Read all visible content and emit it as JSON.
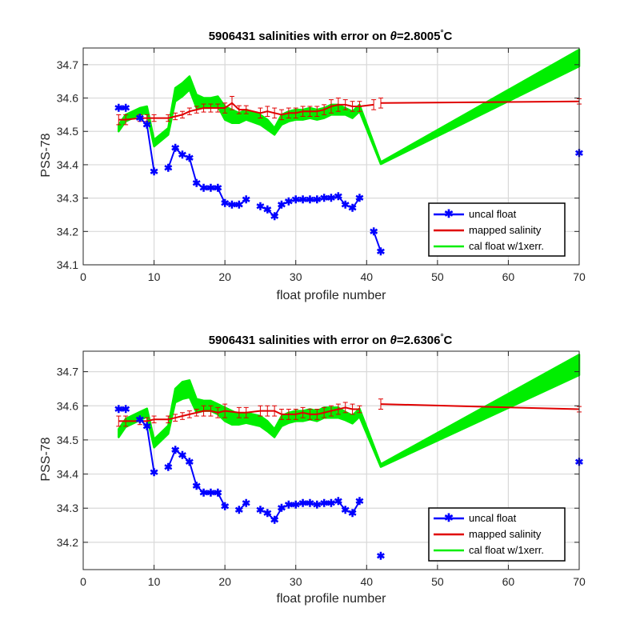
{
  "chart_data": [
    {
      "type": "line",
      "title": "5906431 salinities with error on θ=2.8005°C",
      "title_prefix": "5906431 salinities with error on ",
      "title_theta": "θ",
      "title_value": "=2.8005",
      "title_deg": "°",
      "title_unit": "C",
      "xlabel": "float profile number",
      "ylabel": "PSS-78",
      "xlim": [
        0,
        70
      ],
      "ylim": [
        34.1,
        34.75
      ],
      "xticks": [
        0,
        10,
        20,
        30,
        40,
        50,
        60,
        70
      ],
      "yticks": [
        34.1,
        34.2,
        34.3,
        34.4,
        34.5,
        34.6,
        34.7
      ],
      "grid": true,
      "legend_position": "bottom-right",
      "legend": [
        "uncal float",
        "mapped salinity",
        "cal float w/1xerr."
      ],
      "colors": {
        "uncal": "#0000ff",
        "mapped": "#e00000",
        "cal": "#00ee00"
      },
      "series": [
        {
          "name": "uncal float",
          "segments": [
            [
              [
                5,
                34.57
              ],
              [
                6,
                34.57
              ]
            ],
            [
              [
                8,
                34.54
              ],
              [
                9,
                34.52
              ],
              [
                10,
                34.38
              ]
            ],
            [
              [
                12,
                34.39
              ],
              [
                13,
                34.45
              ],
              [
                14,
                34.43
              ],
              [
                15,
                34.42
              ],
              [
                16,
                34.345
              ],
              [
                17,
                34.33
              ],
              [
                18,
                34.33
              ],
              [
                19,
                34.33
              ],
              [
                20,
                34.285
              ],
              [
                21,
                34.28
              ],
              [
                22,
                34.28
              ],
              [
                23,
                34.295
              ]
            ],
            [
              [
                25,
                34.275
              ],
              [
                26,
                34.265
              ],
              [
                27,
                34.245
              ],
              [
                28,
                34.28
              ],
              [
                29,
                34.29
              ],
              [
                30,
                34.295
              ],
              [
                31,
                34.295
              ],
              [
                32,
                34.295
              ],
              [
                33,
                34.295
              ],
              [
                34,
                34.3
              ],
              [
                35,
                34.3
              ],
              [
                36,
                34.305
              ],
              [
                37,
                34.28
              ],
              [
                38,
                34.27
              ],
              [
                39,
                34.3
              ]
            ],
            [
              [
                41,
                34.2
              ],
              [
                42,
                34.14
              ]
            ],
            [
              [
                70,
                34.435
              ]
            ]
          ]
        },
        {
          "name": "mapped salinity",
          "x": [
            5,
            6,
            8,
            9,
            10,
            12,
            13,
            14,
            15,
            16,
            17,
            18,
            19,
            20,
            21,
            22,
            23,
            25,
            26,
            27,
            28,
            29,
            30,
            31,
            32,
            33,
            34,
            35,
            36,
            37,
            38,
            39,
            41,
            42,
            70
          ],
          "y": [
            34.535,
            34.535,
            34.54,
            34.54,
            34.54,
            34.54,
            34.545,
            34.55,
            34.56,
            34.565,
            34.57,
            34.57,
            34.57,
            34.57,
            34.585,
            34.565,
            34.565,
            34.555,
            34.56,
            34.555,
            34.55,
            34.555,
            34.555,
            34.56,
            34.56,
            34.56,
            34.565,
            34.575,
            34.58,
            34.58,
            34.575,
            34.575,
            34.58,
            34.585,
            34.59
          ],
          "err": [
            0.015,
            0.015,
            0.01,
            0.01,
            0.01,
            0.01,
            0.01,
            0.01,
            0.01,
            0.01,
            0.012,
            0.012,
            0.012,
            0.015,
            0.02,
            0.012,
            0.012,
            0.015,
            0.015,
            0.015,
            0.015,
            0.015,
            0.015,
            0.015,
            0.015,
            0.015,
            0.015,
            0.02,
            0.02,
            0.015,
            0.015,
            0.015,
            0.015,
            0.015,
            0.008
          ],
          "breaks_after_index": [
            32
          ]
        },
        {
          "name": "cal float w/1xerr.",
          "x": [
            5,
            6,
            8,
            9,
            10,
            12,
            13,
            14,
            15,
            16,
            17,
            18,
            19,
            20,
            21,
            22,
            23,
            25,
            26,
            27,
            28,
            29,
            30,
            31,
            32,
            33,
            34,
            35,
            36,
            37,
            38,
            39,
            42,
            70
          ],
          "y": [
            34.51,
            34.54,
            34.56,
            34.565,
            34.465,
            34.5,
            34.61,
            34.625,
            34.645,
            34.59,
            34.585,
            34.585,
            34.59,
            34.555,
            34.545,
            34.54,
            34.55,
            34.535,
            34.52,
            34.5,
            34.535,
            34.545,
            34.55,
            34.55,
            34.555,
            34.55,
            34.555,
            34.565,
            34.565,
            34.56,
            34.55,
            34.57,
            34.405,
            34.72
          ],
          "err": [
            0.01,
            0.01,
            0.01,
            0.01,
            0.01,
            0.01,
            0.02,
            0.02,
            0.02,
            0.02,
            0.015,
            0.015,
            0.015,
            0.02,
            0.02,
            0.015,
            0.015,
            0.015,
            0.015,
            0.01,
            0.015,
            0.015,
            0.015,
            0.015,
            0.015,
            0.015,
            0.015,
            0.015,
            0.015,
            0.01,
            0.01,
            0.01,
            0.003,
            0.025
          ]
        }
      ]
    },
    {
      "type": "line",
      "title": "5906431 salinities with error on θ=2.6306°C",
      "title_prefix": "5906431 salinities with error on ",
      "title_theta": "θ",
      "title_value": "=2.6306",
      "title_deg": "°",
      "title_unit": "C",
      "xlabel": "float profile number",
      "ylabel": "PSS-78",
      "xlim": [
        0,
        70
      ],
      "ylim": [
        34.12,
        34.76
      ],
      "xticks": [
        0,
        10,
        20,
        30,
        40,
        50,
        60,
        70
      ],
      "yticks": [
        34.2,
        34.3,
        34.4,
        34.5,
        34.6,
        34.7
      ],
      "grid": true,
      "legend_position": "bottom-right",
      "legend": [
        "uncal float",
        "mapped salinity",
        "cal float w/1xerr."
      ],
      "colors": {
        "uncal": "#0000ff",
        "mapped": "#e00000",
        "cal": "#00ee00"
      },
      "series": [
        {
          "name": "uncal float",
          "segments": [
            [
              [
                5,
                34.59
              ],
              [
                6,
                34.59
              ]
            ],
            [
              [
                8,
                34.56
              ],
              [
                9,
                34.54
              ],
              [
                10,
                34.405
              ]
            ],
            [
              [
                12,
                34.42
              ],
              [
                13,
                34.47
              ],
              [
                14,
                34.455
              ],
              [
                15,
                34.435
              ],
              [
                16,
                34.365
              ],
              [
                17,
                34.345
              ],
              [
                18,
                34.345
              ],
              [
                19,
                34.345
              ],
              [
                20,
                34.305
              ]
            ],
            [
              [
                22,
                34.295
              ],
              [
                23,
                34.315
              ]
            ],
            [
              [
                25,
                34.295
              ],
              [
                26,
                34.285
              ],
              [
                27,
                34.265
              ],
              [
                28,
                34.3
              ],
              [
                29,
                34.31
              ],
              [
                30,
                34.31
              ],
              [
                31,
                34.315
              ],
              [
                32,
                34.315
              ],
              [
                33,
                34.31
              ],
              [
                34,
                34.315
              ],
              [
                35,
                34.315
              ],
              [
                36,
                34.32
              ],
              [
                37,
                34.295
              ],
              [
                38,
                34.285
              ],
              [
                39,
                34.32
              ]
            ],
            [
              [
                42,
                34.16
              ]
            ],
            [
              [
                70,
                34.435
              ]
            ]
          ]
        },
        {
          "name": "mapped salinity",
          "x": [
            5,
            6,
            8,
            9,
            10,
            12,
            13,
            14,
            15,
            16,
            17,
            18,
            19,
            20,
            22,
            23,
            25,
            26,
            27,
            28,
            29,
            30,
            31,
            32,
            33,
            34,
            35,
            36,
            37,
            38,
            39,
            42,
            70
          ],
          "y": [
            34.555,
            34.555,
            34.555,
            34.555,
            34.56,
            34.56,
            34.565,
            34.57,
            34.575,
            34.58,
            34.585,
            34.585,
            34.58,
            34.585,
            34.58,
            34.58,
            34.585,
            34.585,
            34.585,
            34.575,
            34.575,
            34.575,
            34.58,
            34.575,
            34.575,
            34.58,
            34.585,
            34.59,
            34.595,
            34.59,
            34.59,
            34.605,
            34.59
          ],
          "err": [
            0.015,
            0.015,
            0.01,
            0.01,
            0.01,
            0.01,
            0.01,
            0.01,
            0.01,
            0.01,
            0.015,
            0.015,
            0.015,
            0.02,
            0.015,
            0.015,
            0.015,
            0.015,
            0.015,
            0.015,
            0.015,
            0.015,
            0.015,
            0.015,
            0.015,
            0.015,
            0.015,
            0.015,
            0.015,
            0.015,
            0.01,
            0.015,
            0.008
          ],
          "breaks_after_index": [
            30
          ]
        },
        {
          "name": "cal float w/1xerr.",
          "x": [
            5,
            6,
            8,
            9,
            10,
            12,
            13,
            14,
            15,
            16,
            17,
            18,
            19,
            20,
            21,
            22,
            23,
            25,
            26,
            27,
            28,
            29,
            30,
            31,
            32,
            33,
            34,
            35,
            36,
            37,
            38,
            39,
            42,
            70
          ],
          "y": [
            34.52,
            34.55,
            34.57,
            34.58,
            34.49,
            34.53,
            34.63,
            34.645,
            34.65,
            34.6,
            34.6,
            34.6,
            34.59,
            34.575,
            34.565,
            34.56,
            34.565,
            34.555,
            34.54,
            34.52,
            34.555,
            34.565,
            34.57,
            34.57,
            34.575,
            34.57,
            34.58,
            34.58,
            34.58,
            34.57,
            34.56,
            34.58,
            34.425,
            34.72
          ],
          "err": [
            0.012,
            0.012,
            0.012,
            0.012,
            0.012,
            0.012,
            0.02,
            0.025,
            0.025,
            0.02,
            0.015,
            0.015,
            0.015,
            0.02,
            0.02,
            0.015,
            0.015,
            0.015,
            0.015,
            0.012,
            0.015,
            0.015,
            0.015,
            0.015,
            0.015,
            0.015,
            0.015,
            0.015,
            0.015,
            0.012,
            0.012,
            0.012,
            0.004,
            0.03
          ]
        }
      ]
    }
  ]
}
